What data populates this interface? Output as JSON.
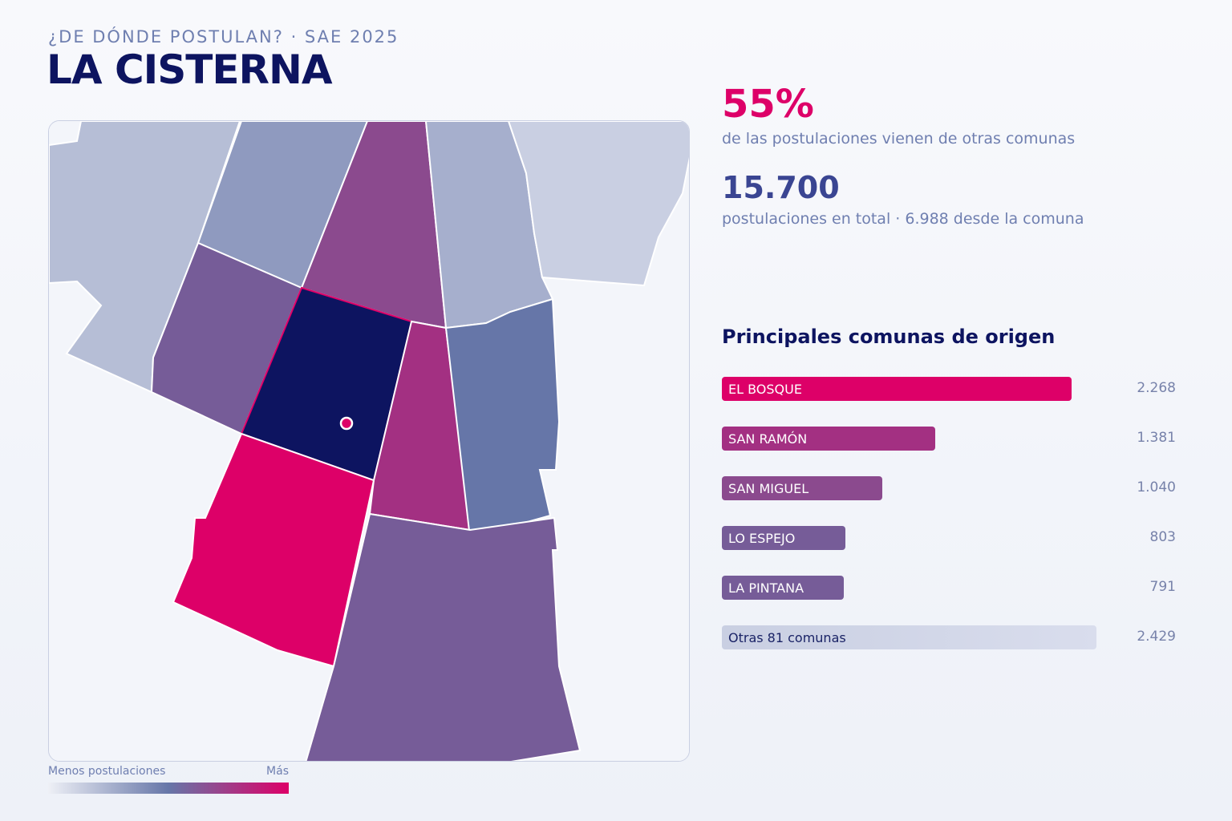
{
  "header": {
    "subtitle": "¿DE DÓNDE POSTULAN? · SAE 2025",
    "title": "LA CISTERNA"
  },
  "stats": {
    "pct_value": "55%",
    "pct_label": "de las postulaciones vienen de otras comunas",
    "total_value": "15.700",
    "total_label": "postulaciones en total · 6.988 desde la comuna"
  },
  "ranking": {
    "title": "Principales comunas de origen",
    "max_value": 2429,
    "items": [
      {
        "name": "EL BOSQUE",
        "value": 2268,
        "value_label": "2.268",
        "color": "#dd0068"
      },
      {
        "name": "SAN RAMÓN",
        "value": 1381,
        "value_label": "1.381",
        "color": "#a33082"
      },
      {
        "name": "SAN MIGUEL",
        "value": 1040,
        "value_label": "1.040",
        "color": "#8b4a8e"
      },
      {
        "name": "LO ESPEJO",
        "value": 803,
        "value_label": "803",
        "color": "#765c98"
      },
      {
        "name": "LA PINTANA",
        "value": 791,
        "value_label": "791",
        "color": "#765c98"
      },
      {
        "name": "Otras 81 comunas",
        "value": 2429,
        "value_label": "2.429",
        "color": "#cfd4e4"
      }
    ]
  },
  "legend": {
    "min_label": "Menos postulaciones",
    "max_label": "Más",
    "colors": [
      "#eef0f6",
      "#6676a8",
      "#dd0068"
    ]
  },
  "map": {
    "highlight_color": "#0d1460",
    "marker_color": "#dd0068",
    "comuna_colors": {
      "la_cisterna": "#0d1460",
      "el_bosque": "#dd0068",
      "san_ramon": "#a33082",
      "san_miguel": "#8b4a8e",
      "lo_espejo": "#765c98",
      "la_pintana": "#765c98",
      "la_granja": "#6676a8",
      "pedro_aguirre_cerda": "#8f9abf",
      "san_joaquin": "#a6afcd",
      "cerrillos": "#b6bed6",
      "macul": "#c9cfe2",
      "santiago": "#c9cfe2"
    }
  }
}
